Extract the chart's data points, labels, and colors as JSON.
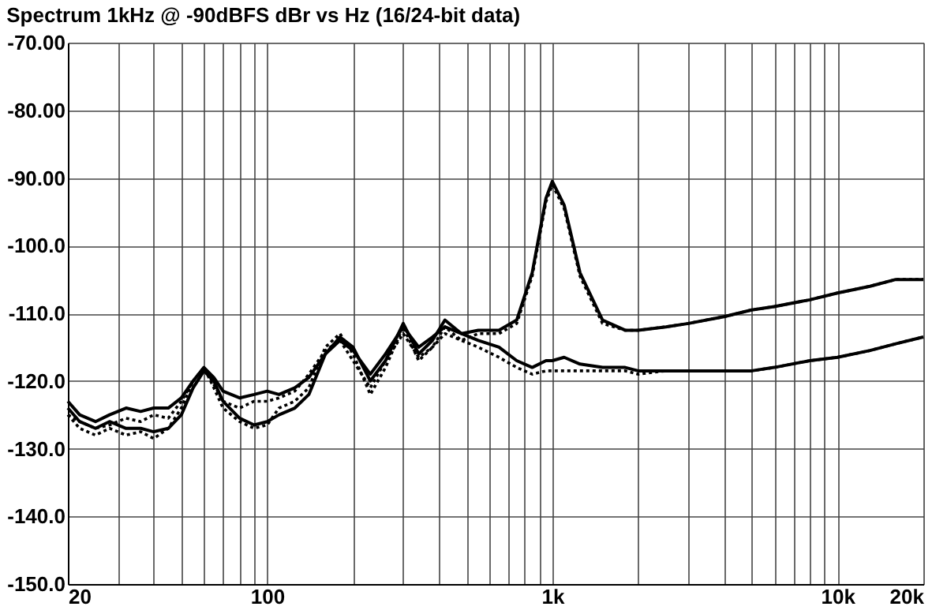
{
  "chart_data": {
    "type": "line",
    "title": "Spectrum 1kHz @ -90dBFS dBr vs Hz (16/24-bit data)",
    "log": "x",
    "grid": true,
    "xlim": [
      20,
      20000
    ],
    "ylim": [
      -150,
      -70
    ],
    "xticks": [
      20,
      {
        "value": 30,
        "label": null
      },
      {
        "value": 40,
        "label": null
      },
      {
        "value": 50,
        "label": null
      },
      {
        "value": 60,
        "label": null
      },
      {
        "value": 70,
        "label": null
      },
      {
        "value": 80,
        "label": null
      },
      {
        "value": 90,
        "label": null
      },
      100,
      {
        "value": 200,
        "label": null
      },
      {
        "value": 300,
        "label": null
      },
      {
        "value": 400,
        "label": null
      },
      {
        "value": 500,
        "label": null
      },
      {
        "value": 600,
        "label": null
      },
      {
        "value": 700,
        "label": null
      },
      {
        "value": 800,
        "label": null
      },
      {
        "value": 900,
        "label": null
      },
      {
        "value": 1000,
        "label": "1k"
      },
      {
        "value": 2000,
        "label": null
      },
      {
        "value": 3000,
        "label": null
      },
      {
        "value": 4000,
        "label": null
      },
      {
        "value": 5000,
        "label": null
      },
      {
        "value": 6000,
        "label": null
      },
      {
        "value": 7000,
        "label": null
      },
      {
        "value": 8000,
        "label": null
      },
      {
        "value": 9000,
        "label": null
      },
      {
        "value": 10000,
        "label": "10k"
      },
      {
        "value": 20000,
        "label": "20k"
      }
    ],
    "yticks": [
      {
        "value": -70,
        "label": "-70.00"
      },
      {
        "value": -80,
        "label": "-80.00"
      },
      {
        "value": -90,
        "label": "-90.00"
      },
      {
        "value": -100,
        "label": "-100.0"
      },
      {
        "value": -110,
        "label": "-110.0"
      },
      {
        "value": -120,
        "label": "-120.0"
      },
      {
        "value": -130,
        "label": "-130.0"
      },
      {
        "value": -140,
        "label": "-140.0"
      },
      {
        "value": -150,
        "label": "-150.0"
      }
    ],
    "x": [
      20,
      22,
      25,
      28,
      32,
      36,
      40,
      45,
      50,
      55,
      60,
      65,
      70,
      80,
      90,
      100,
      110,
      125,
      140,
      160,
      180,
      200,
      230,
      260,
      300,
      340,
      380,
      420,
      480,
      550,
      650,
      750,
      850,
      950,
      1000,
      1100,
      1250,
      1500,
      1800,
      2000,
      2500,
      3000,
      4000,
      5000,
      6000,
      8000,
      10000,
      13000,
      16000,
      20000
    ],
    "series": [
      {
        "color": "#000000",
        "line_style": "solid",
        "values": [
          -124,
          -126,
          -127,
          -126,
          -127,
          -127,
          -127.5,
          -127,
          -125,
          -121,
          -118.5,
          -120,
          -123,
          -125.5,
          -126.5,
          -126,
          -125,
          -124,
          -122,
          -116,
          -113.5,
          -115,
          -120,
          -117,
          -111.5,
          -116,
          -114,
          -111,
          -113,
          -112.5,
          -112.5,
          -111,
          -104,
          -93,
          -90.5,
          -94,
          -104,
          -111,
          -112.5,
          -112.5,
          -112,
          -111.5,
          -110.5,
          -109.5,
          -109,
          -108,
          -107,
          -106,
          -105,
          -105
        ]
      },
      {
        "color": "#000000",
        "line_style": "dotted",
        "values": [
          -125,
          -127,
          -128,
          -127,
          -128,
          -127.5,
          -128.5,
          -127,
          -124,
          -120,
          -118,
          -121,
          -124,
          -126,
          -127,
          -126.5,
          -124,
          -123,
          -121,
          -115,
          -113,
          -116,
          -122,
          -118,
          -112,
          -117,
          -115,
          -112,
          -114,
          -113,
          -113,
          -111.5,
          -104.5,
          -93.5,
          -91,
          -94.5,
          -104.5,
          -111.5,
          -112.5,
          -112.5,
          -112,
          -111.5,
          -110.5,
          -109.5,
          -109,
          -108,
          -107,
          -106,
          -105,
          -105
        ]
      },
      {
        "color": "#000000",
        "line_style": "solid",
        "values": [
          -123,
          -125,
          -126,
          -125,
          -124,
          -124.5,
          -124,
          -124,
          -122.5,
          -120,
          -118,
          -119.5,
          -121.5,
          -122.5,
          -122,
          -121.5,
          -122,
          -121,
          -119.5,
          -116,
          -114,
          -115.5,
          -119,
          -116,
          -112,
          -115,
          -113.5,
          -112,
          -113,
          -114,
          -115,
          -117,
          -118,
          -117,
          -117,
          -116.5,
          -117.5,
          -118,
          -118,
          -118.5,
          -118.5,
          -118.5,
          -118.5,
          -118.5,
          -118,
          -117,
          -116.5,
          -115.5,
          -114.5,
          -113.5
        ]
      },
      {
        "color": "#000000",
        "line_style": "dotted",
        "values": [
          -125,
          -126,
          -127,
          -126.5,
          -125.5,
          -126,
          -125,
          -125.5,
          -123,
          -120,
          -118,
          -120.5,
          -123,
          -124,
          -123,
          -123,
          -122.5,
          -121.5,
          -119,
          -115.5,
          -114,
          -117,
          -121,
          -117,
          -113,
          -116.5,
          -115,
          -113,
          -114,
          -115,
          -116.5,
          -118,
          -119,
          -118.5,
          -118.5,
          -118.5,
          -118.5,
          -118.5,
          -118.5,
          -119,
          -118.5,
          -118.5,
          -118.5,
          -118.5,
          -118,
          -117,
          -116.5,
          -115.5,
          -114.5,
          -113.5
        ]
      }
    ]
  }
}
